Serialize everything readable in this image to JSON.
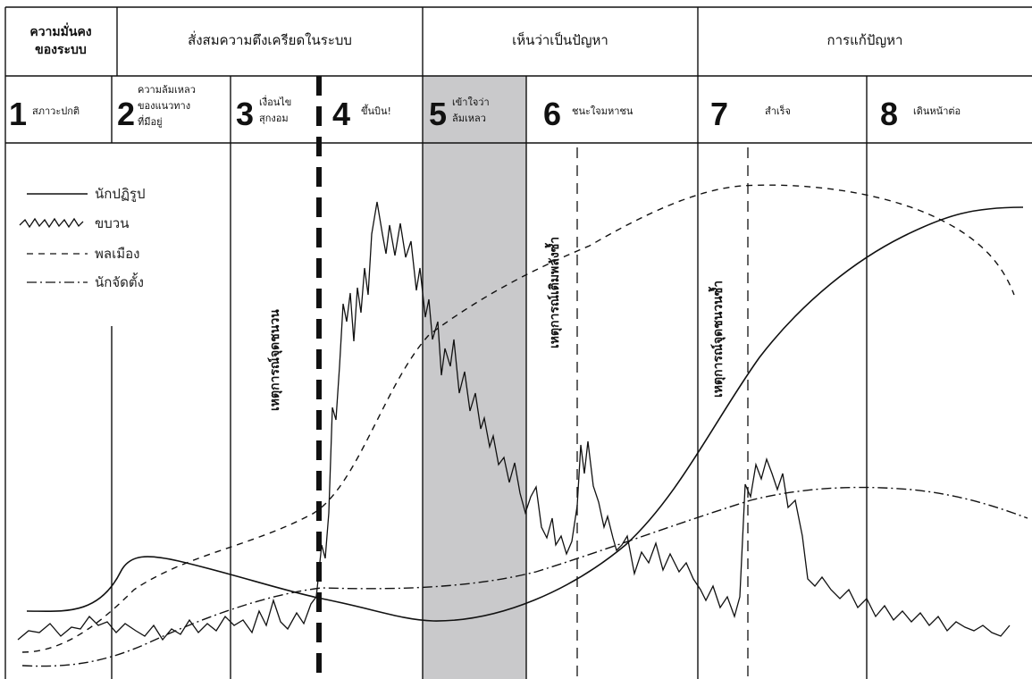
{
  "headers": {
    "col1": [
      "ความมั่นคง",
      "ของระบบ"
    ],
    "tension": "สั่งสมความตึงเครียดในระบบ",
    "problem": "เห็นว่าเป็นปัญหา",
    "solution": "การแก้ปัญหา"
  },
  "stages": [
    {
      "num": "1",
      "lines": [
        "สภาวะปกติ"
      ]
    },
    {
      "num": "2",
      "lines": [
        "ความล้มเหลว",
        "ของแนวทาง",
        "ที่มีอยู่"
      ]
    },
    {
      "num": "3",
      "lines": [
        "เงื่อนไข",
        "สุกงอม"
      ]
    },
    {
      "num": "4",
      "lines": [
        "ขึ้นบิน!"
      ]
    },
    {
      "num": "5",
      "lines": [
        "เข้าใจว่า",
        "ล้มเหลว"
      ]
    },
    {
      "num": "6",
      "lines": [
        "ชนะใจมหาชน"
      ]
    },
    {
      "num": "7",
      "lines": [
        "สำเร็จ"
      ]
    },
    {
      "num": "8",
      "lines": [
        "เดินหน้าต่อ"
      ]
    }
  ],
  "legend": {
    "reformers": "นักปฏิรูป",
    "movement": "ขบวน",
    "citizens": "พลเมือง",
    "organizers": "นักจัดตั้ง"
  },
  "events": {
    "trigger": "เหตุการณ์จุดชนวน",
    "reenergize": "เหตุการณ์เติมพลังซ้ำ",
    "reenergize2": "เหตุการณ์จุดชนวนซ้ำ"
  },
  "colors": {
    "line": "#111111",
    "shade": "#c9c9cb"
  }
}
